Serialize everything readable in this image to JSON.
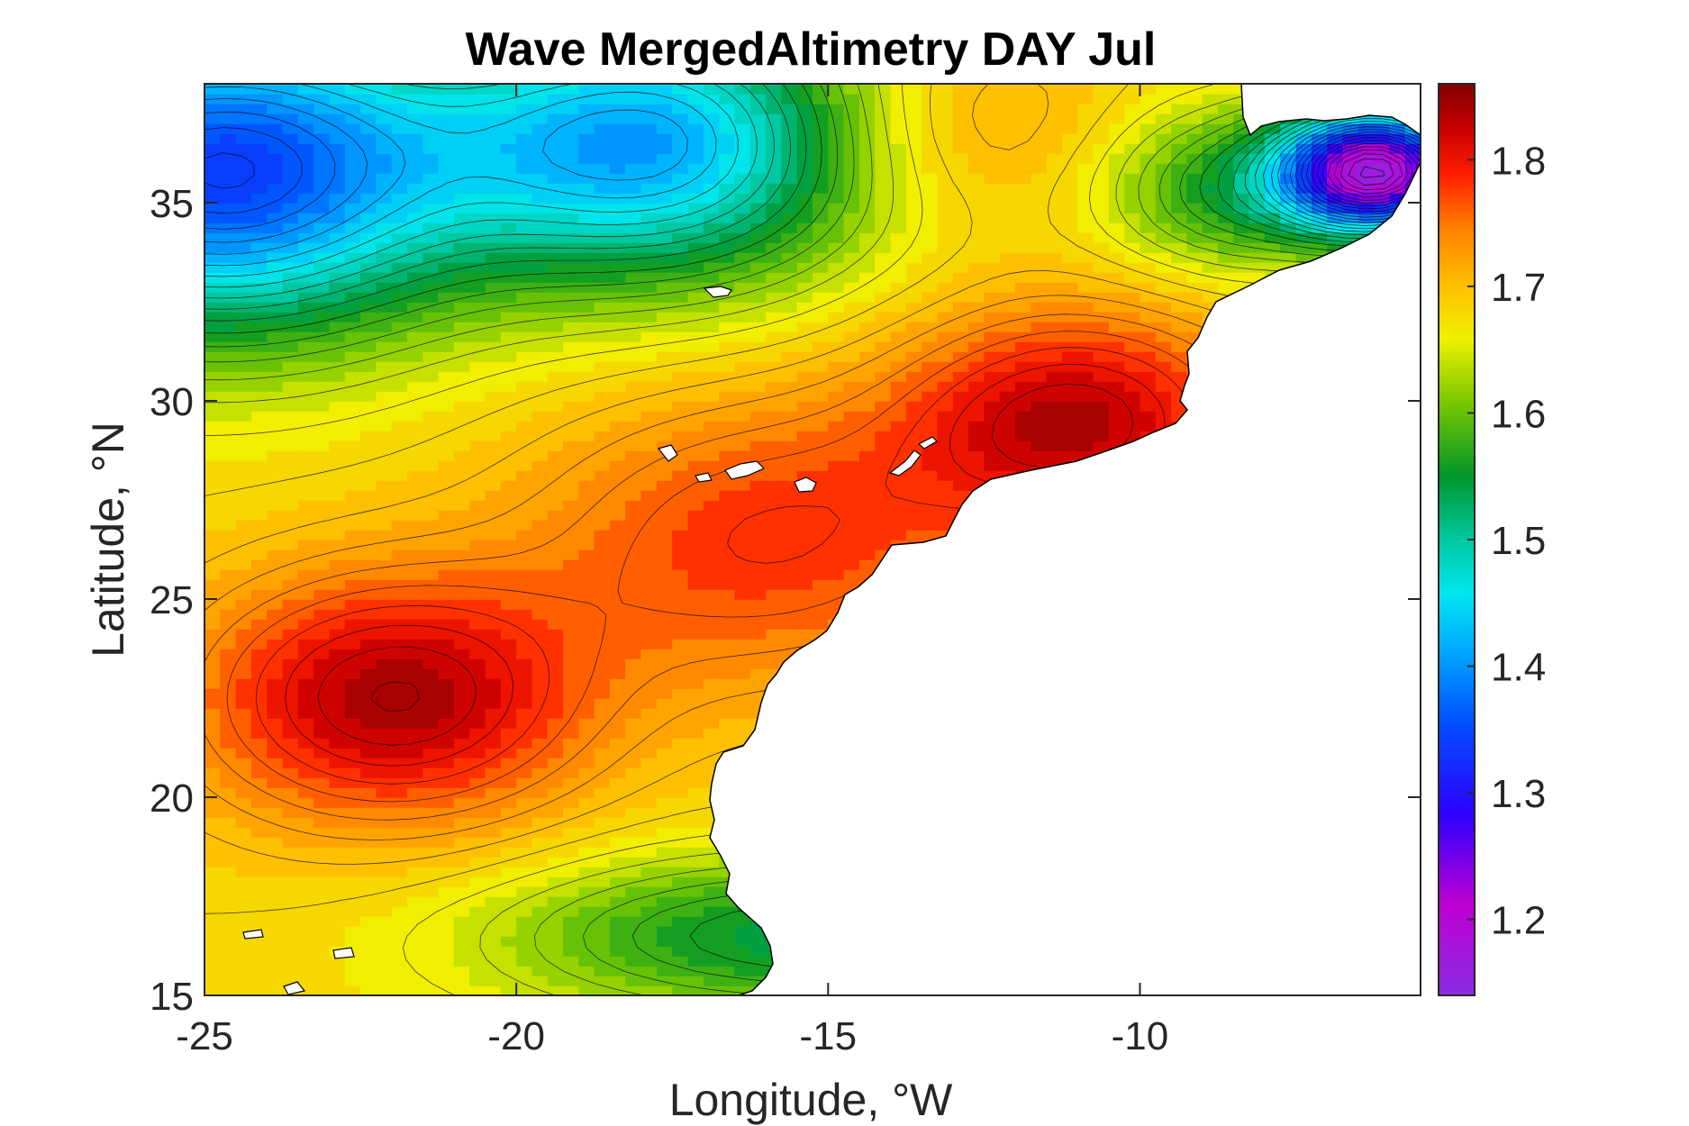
{
  "chart_data": {
    "type": "contour-map",
    "title": "Wave MergedAltimetry DAY Jul",
    "xlabel": "Longitude, °W",
    "ylabel": "Latitude, °N",
    "xlim": [
      -25,
      -5.5
    ],
    "ylim": [
      15,
      38
    ],
    "xticks": [
      {
        "value": -25,
        "label": "-25"
      },
      {
        "value": -20,
        "label": "-20"
      },
      {
        "value": -15,
        "label": "-15"
      },
      {
        "value": -10,
        "label": "-10"
      }
    ],
    "yticks": [
      {
        "value": 15,
        "label": "15"
      },
      {
        "value": 20,
        "label": "20"
      },
      {
        "value": 25,
        "label": "25"
      },
      {
        "value": 30,
        "label": "30"
      },
      {
        "value": 35,
        "label": "35"
      }
    ],
    "colorbar": {
      "range": [
        1.14,
        1.86
      ],
      "colormap": "jet-like",
      "ticks": [
        {
          "value": 1.2,
          "label": "1.2"
        },
        {
          "value": 1.3,
          "label": "1.3"
        },
        {
          "value": 1.4,
          "label": "1.4"
        },
        {
          "value": 1.5,
          "label": "1.5"
        },
        {
          "value": 1.6,
          "label": "1.6"
        },
        {
          "value": 1.7,
          "label": "1.7"
        },
        {
          "value": 1.8,
          "label": "1.8"
        }
      ]
    },
    "land_color": "#ffffff",
    "contour_line_color": "#000000"
  }
}
